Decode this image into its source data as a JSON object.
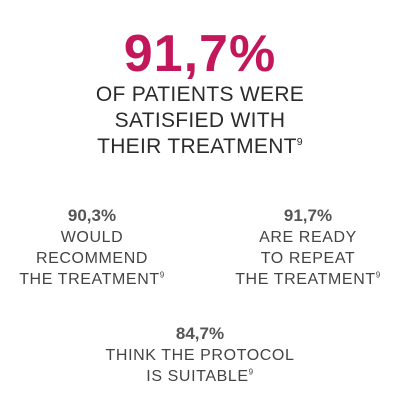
{
  "accent_color": "#c2185b",
  "headline": {
    "value": "91,7%",
    "lines": [
      "OF PATIENTS WERE",
      "SATISFIED WITH",
      "THEIR TREATMENT"
    ],
    "footnote": "9"
  },
  "stats": [
    {
      "value": "90,3%",
      "lines": [
        "WOULD",
        "RECOMMEND",
        "THE TREATMENT"
      ],
      "footnote": "9"
    },
    {
      "value": "91,7%",
      "lines": [
        "ARE READY",
        "TO REPEAT",
        "THE TREATMENT"
      ],
      "footnote": "9"
    },
    {
      "value": "84,7%",
      "lines": [
        "THINK THE PROTOCOL",
        "IS SUITABLE"
      ],
      "footnote": "9"
    }
  ]
}
